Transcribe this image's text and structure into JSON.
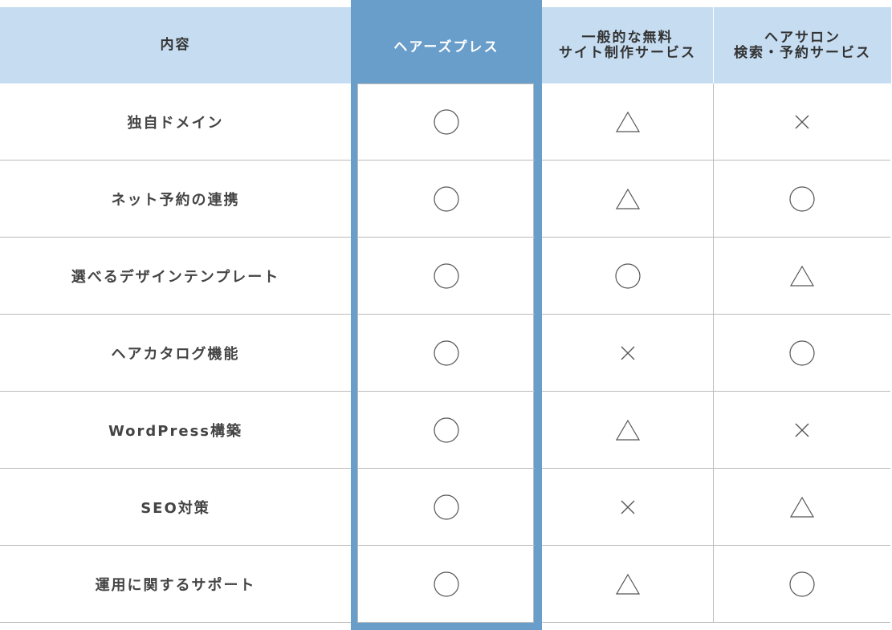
{
  "header": {
    "content": "内容",
    "featured": "ヘアーズプレス",
    "col2_line1": "一般的な無料",
    "col2_line2": "サイト制作サービス",
    "col3_line1": "ヘアサロン",
    "col3_line2": "検索・予約サービス"
  },
  "symbols": {
    "circle": "〇",
    "triangle": "△",
    "cross": "×"
  },
  "colors": {
    "header_bg": "#c5dcf1",
    "featured": "#699ecb"
  },
  "rows": [
    {
      "label": "独自ドメイン",
      "values": [
        "circle",
        "triangle",
        "cross"
      ]
    },
    {
      "label": "ネット予約の連携",
      "values": [
        "circle",
        "triangle",
        "circle"
      ]
    },
    {
      "label": "選べるデザインテンプレート",
      "values": [
        "circle",
        "circle",
        "triangle"
      ]
    },
    {
      "label": "ヘアカタログ機能",
      "values": [
        "circle",
        "cross",
        "circle"
      ]
    },
    {
      "label": "WordPress構築",
      "values": [
        "circle",
        "triangle",
        "cross"
      ]
    },
    {
      "label": "SEO対策",
      "values": [
        "circle",
        "cross",
        "triangle"
      ]
    },
    {
      "label": "運用に関するサポート",
      "values": [
        "circle",
        "triangle",
        "circle"
      ]
    }
  ]
}
